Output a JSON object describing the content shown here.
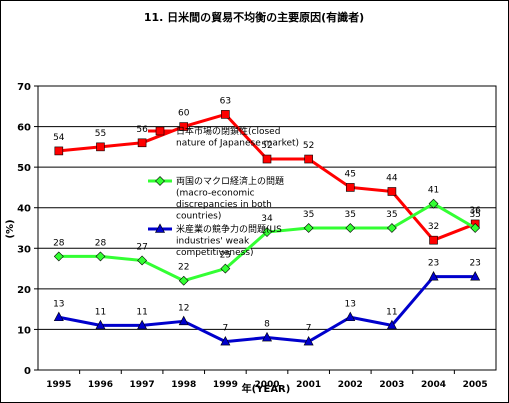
{
  "chart_data": {
    "type": "line",
    "title": "11. 日米間の貿易不均衡の主要原因(有識者)",
    "xlabel": "年(YEAR)",
    "ylabel": "(%)",
    "ylim": [
      0,
      70
    ],
    "yticks": [
      0,
      10,
      20,
      30,
      40,
      50,
      60,
      70
    ],
    "grid": true,
    "categories": [
      "1995",
      "1996",
      "1997",
      "1998",
      "1999",
      "2000",
      "2001",
      "2002",
      "2003",
      "2004",
      "2005"
    ],
    "series": [
      {
        "name": "日本市場の閉鎖性(closed nature of Japanese market)",
        "name_lines": [
          "日本市場の閉鎖性(closed",
          "nature of Japanese market)"
        ],
        "color": "#ff0000",
        "marker": "square",
        "values": [
          54,
          55,
          56,
          60,
          63,
          52,
          52,
          45,
          44,
          32,
          36
        ]
      },
      {
        "name": "両国のマクロ経済上の問題(macro-economic discrepancies in both countries)",
        "name_lines": [
          "両国のマクロ経済上の問題",
          "(macro-economic",
          "discrepancies in both",
          "countries)"
        ],
        "color": "#33ff33",
        "marker": "diamond",
        "values": [
          28,
          28,
          27,
          22,
          25,
          34,
          35,
          35,
          35,
          41,
          35
        ]
      },
      {
        "name": "米産業の競争力の問題(US industries' weak competitiveness)",
        "name_lines": [
          "米産業の競争力の問題(US",
          "industries' weak",
          "competitiveness)"
        ],
        "color": "#0000cc",
        "marker": "triangle",
        "values": [
          13,
          11,
          11,
          12,
          7,
          8,
          7,
          13,
          11,
          23,
          23
        ]
      }
    ]
  }
}
